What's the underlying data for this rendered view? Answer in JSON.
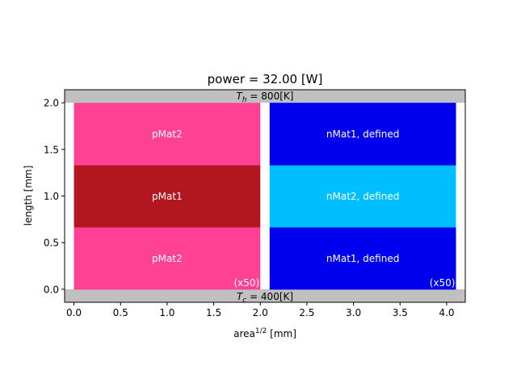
{
  "chart_data": {
    "type": "bar",
    "title": "power = 32.00 [W]",
    "xlabel": "area",
    "xlabel_sup": "1/2",
    "xlabel_unit": " [mm]",
    "ylabel": "length [mm]",
    "xlim": [
      -0.1,
      4.2
    ],
    "ylim": [
      -0.14,
      2.14
    ],
    "xticks": [
      "0.0",
      "0.5",
      "1.0",
      "1.5",
      "2.0",
      "2.5",
      "3.0",
      "3.5",
      "4.0"
    ],
    "yticks": [
      "0.0",
      "0.5",
      "1.0",
      "1.5",
      "2.0"
    ],
    "grid": false,
    "hot_reservoir": {
      "label": "T_h = 800[K]",
      "label_main": "T",
      "label_sub": "h",
      "label_rest": " = 800[K]",
      "color": "#c0c0c0"
    },
    "cold_reservoir": {
      "label": "T_c = 400[K]",
      "label_main": "T",
      "label_sub": "c",
      "label_rest": " = 400[K]",
      "color": "#c0c0c0"
    },
    "legs": [
      {
        "x0": 0.0,
        "x1": 2.0,
        "multiplier": "(x50)",
        "segments": [
          {
            "y0": 0.0,
            "y1": 0.667,
            "label": "pMat2",
            "color": "#ff4196"
          },
          {
            "y0": 0.667,
            "y1": 1.333,
            "label": "pMat1",
            "color": "#b2161f"
          },
          {
            "y0": 1.333,
            "y1": 2.0,
            "label": "pMat2",
            "color": "#ff4196"
          }
        ]
      },
      {
        "x0": 2.1,
        "x1": 4.1,
        "multiplier": "(x50)",
        "segments": [
          {
            "y0": 0.0,
            "y1": 0.667,
            "label": "nMat1, defined",
            "color": "#0000ee"
          },
          {
            "y0": 0.667,
            "y1": 1.333,
            "label": "nMat2, defined",
            "color": "#00bfff"
          },
          {
            "y0": 1.333,
            "y1": 2.0,
            "label": "nMat1, defined",
            "color": "#0000ee"
          }
        ]
      }
    ]
  }
}
